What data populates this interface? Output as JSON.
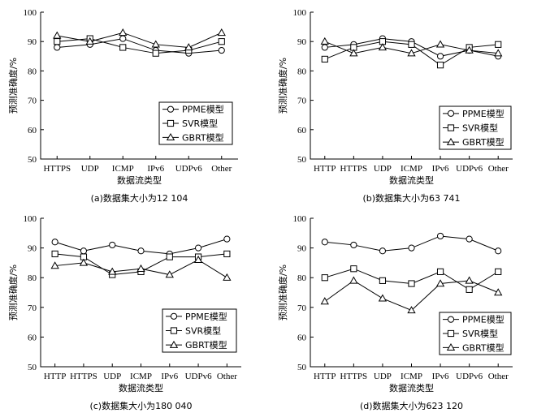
{
  "chart_data": [
    {
      "type": "line",
      "caption": "(a)数据集大小为12 104",
      "xlabel": "数据流类型",
      "ylabel": "预测准确度/%",
      "ylim": [
        50,
        100
      ],
      "yticks": [
        50,
        60,
        70,
        80,
        90,
        100
      ],
      "categories": [
        "HTTPS",
        "UDP",
        "ICMP",
        "IPv6",
        "UDPv6",
        "Other"
      ],
      "legend_position": "bottom-right",
      "series": [
        {
          "name": "PPME模型",
          "marker": "circle",
          "values": [
            88,
            89,
            91,
            87,
            86,
            87
          ]
        },
        {
          "name": "SVR模型",
          "marker": "square",
          "values": [
            90,
            91,
            88,
            86,
            87,
            90
          ]
        },
        {
          "name": "GBRT模型",
          "marker": "triangle",
          "values": [
            92,
            90,
            93,
            89,
            88,
            93
          ]
        }
      ]
    },
    {
      "type": "line",
      "caption": "(b)数据集大小为63 741",
      "xlabel": "数据流类型",
      "ylabel": "预测准确度/%",
      "ylim": [
        50,
        100
      ],
      "yticks": [
        50,
        60,
        70,
        80,
        90,
        100
      ],
      "categories": [
        "HTTP",
        "HTTPS",
        "UDP",
        "ICMP",
        "IPv6",
        "UDPv6",
        "Other"
      ],
      "legend_position": "bottom-right",
      "series": [
        {
          "name": "PPME模型",
          "marker": "circle",
          "values": [
            88,
            89,
            91,
            90,
            85,
            87,
            85
          ]
        },
        {
          "name": "SVR模型",
          "marker": "square",
          "values": [
            84,
            88,
            90,
            89,
            82,
            88,
            89
          ]
        },
        {
          "name": "GBRT模型",
          "marker": "triangle",
          "values": [
            90,
            86,
            88,
            86,
            89,
            87,
            86
          ]
        }
      ]
    },
    {
      "type": "line",
      "caption": "(c)数据集大小为180 040",
      "xlabel": "数据流类型",
      "ylabel": "预测准确度/%",
      "ylim": [
        50,
        100
      ],
      "yticks": [
        50,
        60,
        70,
        80,
        90,
        100
      ],
      "categories": [
        "HTTP",
        "HTTPS",
        "UDP",
        "ICMP",
        "IPv6",
        "UDPv6",
        "Other"
      ],
      "legend_position": "bottom-right",
      "series": [
        {
          "name": "PPME模型",
          "marker": "circle",
          "values": [
            92,
            89,
            91,
            89,
            88,
            90,
            93
          ]
        },
        {
          "name": "SVR模型",
          "marker": "square",
          "values": [
            88,
            87,
            81,
            82,
            87,
            87,
            88
          ]
        },
        {
          "name": "GBRT模型",
          "marker": "triangle",
          "values": [
            84,
            85,
            82,
            83,
            81,
            86,
            80
          ]
        }
      ]
    },
    {
      "type": "line",
      "caption": "(d)数据集大小为623 120",
      "xlabel": "数据流类型",
      "ylabel": "预测准确度/%",
      "ylim": [
        50,
        100
      ],
      "yticks": [
        50,
        60,
        70,
        80,
        90,
        100
      ],
      "categories": [
        "HTTP",
        "HTTPS",
        "UDP",
        "ICMP",
        "IPv6",
        "UDPv6",
        "Other"
      ],
      "legend_position": "bottom-right",
      "series": [
        {
          "name": "PPME模型",
          "marker": "circle",
          "values": [
            92,
            91,
            89,
            90,
            94,
            93,
            89
          ]
        },
        {
          "name": "SVR模型",
          "marker": "square",
          "values": [
            80,
            83,
            79,
            78,
            82,
            76,
            82
          ]
        },
        {
          "name": "GBRT模型",
          "marker": "triangle",
          "values": [
            72,
            79,
            73,
            69,
            78,
            79,
            75
          ]
        }
      ]
    }
  ]
}
